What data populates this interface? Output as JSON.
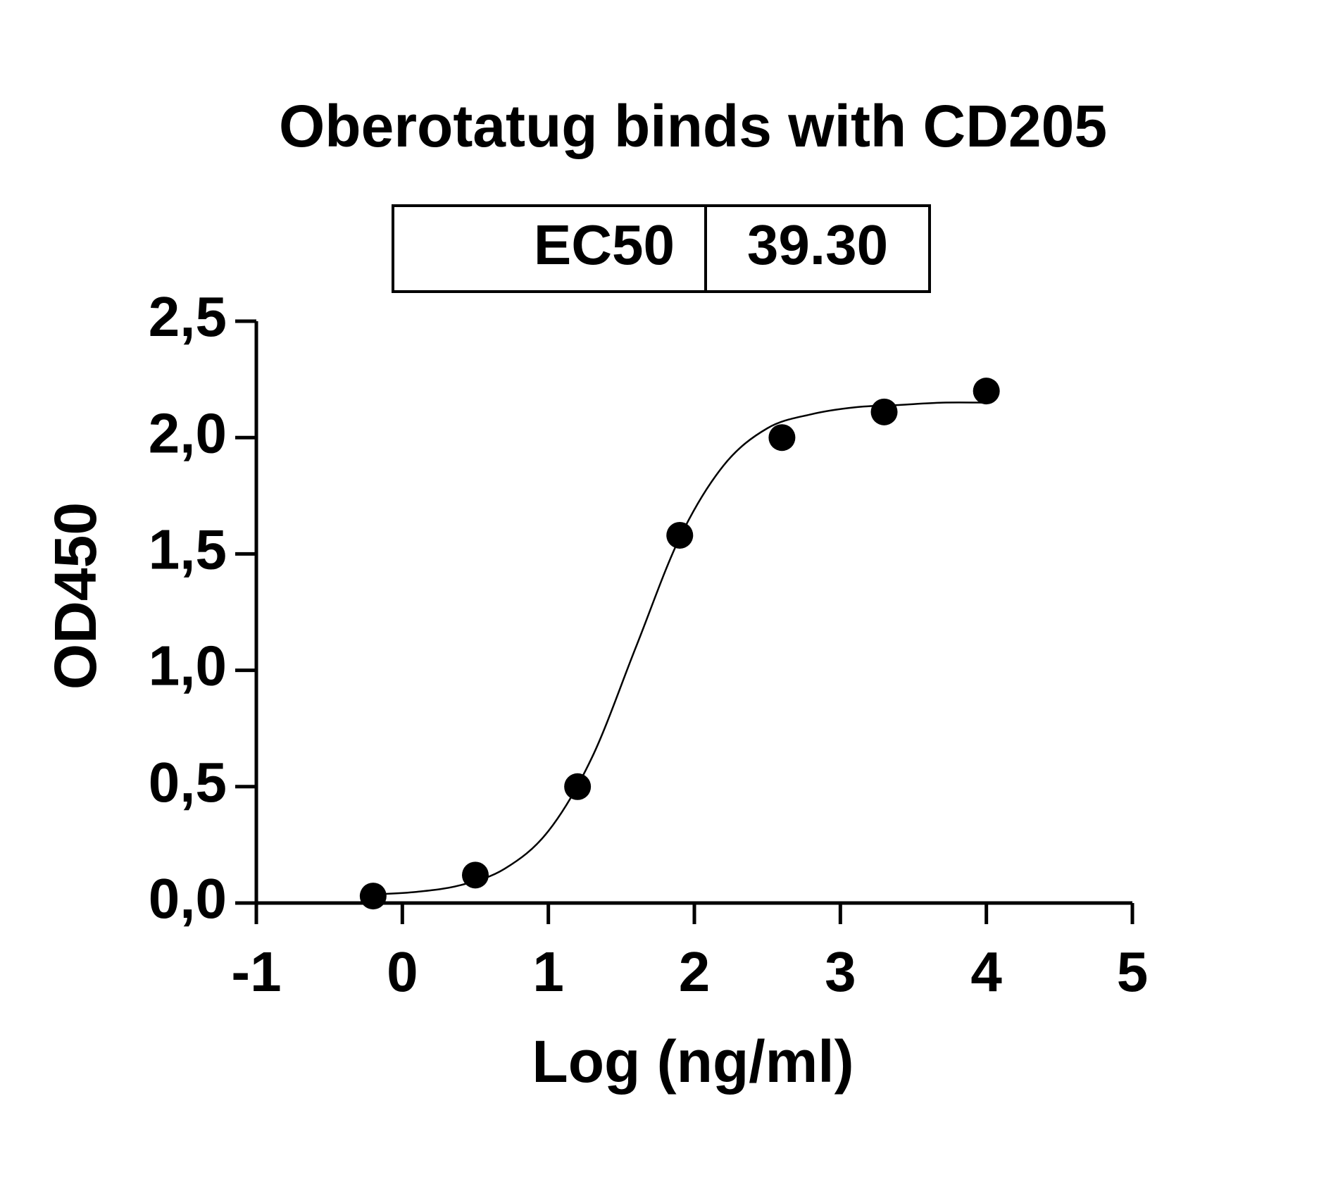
{
  "chart_data": {
    "type": "scatter",
    "title": "Oberotatug binds with CD205",
    "ec50_table": [
      "EC50",
      "39.30"
    ],
    "x_label": "Log (ng/ml)",
    "y_label": "OD450",
    "x": [
      -0.2,
      0.5,
      1.2,
      1.9,
      2.6,
      3.3,
      4.0
    ],
    "values": [
      0.03,
      0.12,
      0.5,
      1.58,
      2.0,
      2.11,
      2.2
    ],
    "color": "#000000",
    "fit": {
      "x": [
        -0.2,
        0.1,
        0.4,
        0.7,
        1.0,
        1.3,
        1.6,
        1.9,
        2.2,
        2.5,
        2.8,
        3.1,
        3.4,
        3.7,
        4.0
      ],
      "values": [
        0.037,
        0.048,
        0.077,
        0.147,
        0.309,
        0.627,
        1.1,
        1.57,
        1.88,
        2.04,
        2.1,
        2.13,
        2.14,
        2.15,
        2.15
      ]
    },
    "xlim": [
      -1,
      5
    ],
    "xticks": [
      -1,
      0,
      1,
      2,
      3,
      4,
      5
    ],
    "ylim": [
      0,
      2.5
    ],
    "yticks": [
      {
        "value": 0,
        "label": "0,0"
      },
      {
        "value": 0.5,
        "label": "0,5"
      },
      {
        "value": 1,
        "label": "1,0"
      },
      {
        "value": 1.5,
        "label": "1,5"
      },
      {
        "value": 2,
        "label": "2,0"
      },
      {
        "value": 2.5,
        "label": "2,5"
      }
    ],
    "grid": false
  }
}
